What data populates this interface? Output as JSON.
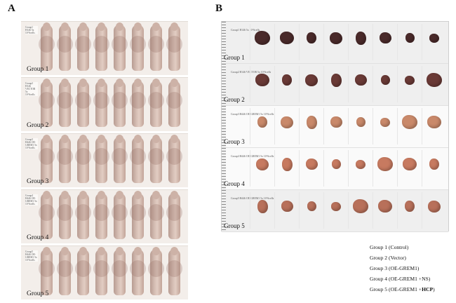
{
  "panels": {
    "a": "A",
    "b": "B"
  },
  "panel_a": {
    "rows": [
      {
        "label": "Group 1",
        "tag": "Group1 H146 5x 10^6cells"
      },
      {
        "label": "Group 2",
        "tag": "Group2 H146 VECTOR 5x 10^6cells"
      },
      {
        "label": "Group 3",
        "tag": "Group3 H446 OE-GREM1 5x 10^6cells"
      },
      {
        "label": "Group 4",
        "tag": "Group4 H446 OE-GREM1 5x 10^6cells"
      },
      {
        "label": "Group 5",
        "tag": "Group5 H446 OE-GREM1 5x 10^6cells"
      }
    ],
    "mice_per_group": 8
  },
  "panel_b": {
    "rows": [
      {
        "label": "Group 1",
        "tag": "Group1 H146 5x 10^6cells",
        "tumor_color": "#4a2a2a"
      },
      {
        "label": "Group 2",
        "tag": "Group2 H146 VECTOR 5x 10^6cells",
        "tumor_color": "#6a3a36"
      },
      {
        "label": "Group 3",
        "tag": "Group3 H446 OE-GREM1 5x 10^6cells",
        "tumor_color": "#c9896a"
      },
      {
        "label": "Group 4",
        "tag": "Group4 H446 OE-GREM1 5x 10^6cells",
        "tumor_color": "#c77a60"
      },
      {
        "label": "Group 5",
        "tag": "Group5 H446 OE-GREM1 5x 10^6cells",
        "tumor_color": "#b8705a"
      }
    ],
    "tumors_per_group": 8
  },
  "legend": [
    {
      "text": "Group 1 (Control)",
      "bold": ""
    },
    {
      "text": "Group 2 (Vector)",
      "bold": ""
    },
    {
      "text": "Group 3 (OE-GREM1)",
      "bold": ""
    },
    {
      "text": "Group 4 (OE-GREM1 +NS)",
      "bold": ""
    },
    {
      "text": "Group 5 (OE-GREM1 +",
      "bold": "HCP"
    }
  ]
}
